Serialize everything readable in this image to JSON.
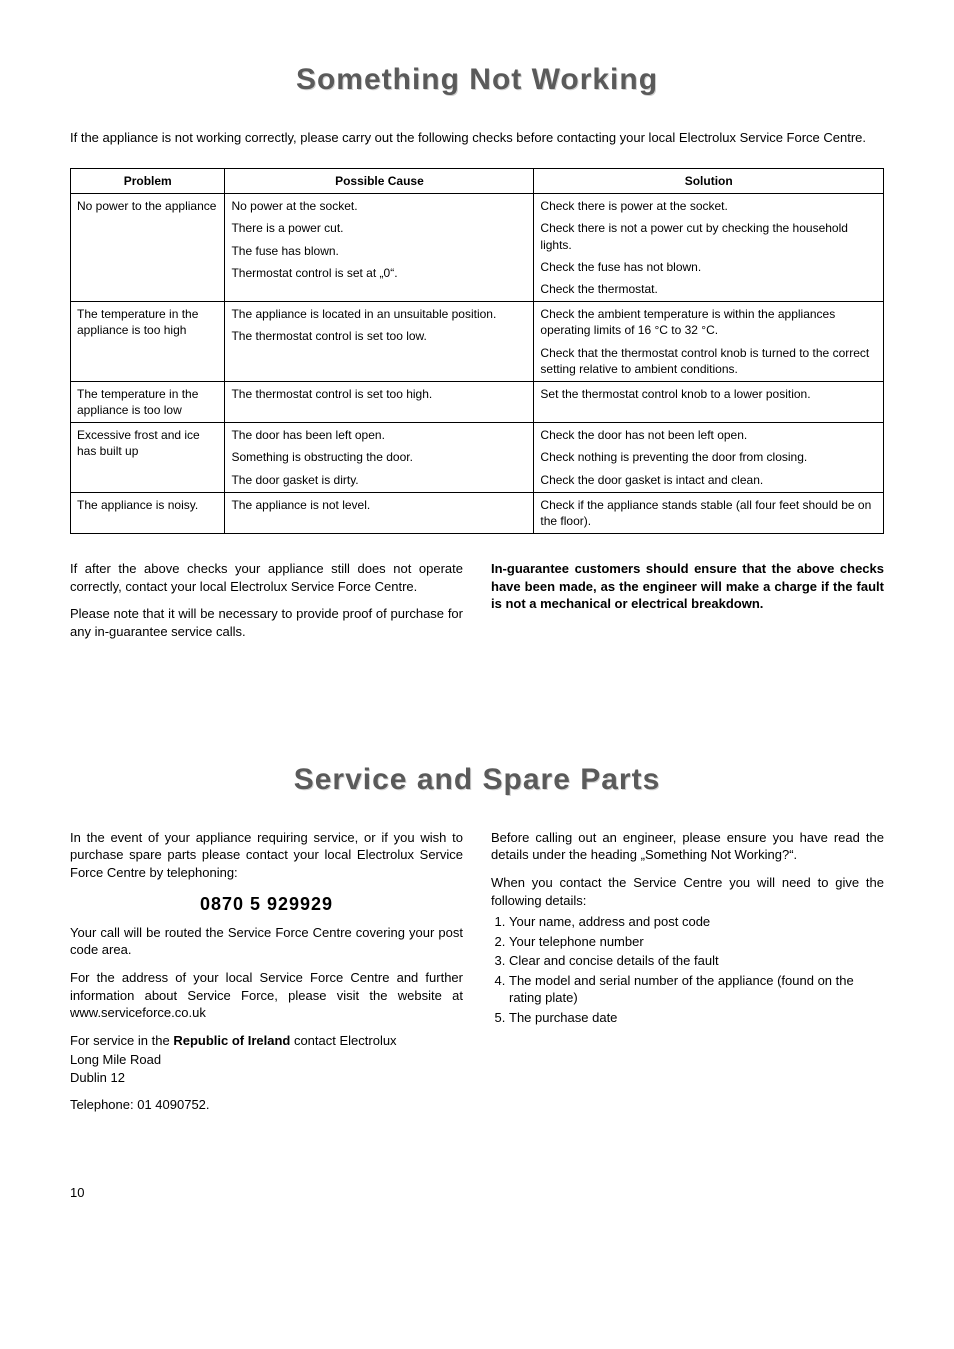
{
  "section1": {
    "title": "Something Not Working",
    "intro": "If the appliance is not working correctly, please carry out the following checks before contacting your local Electrolux Service Force Centre.",
    "headers": [
      "Problem",
      "Possible Cause",
      "Solution"
    ],
    "rows": [
      {
        "problem": "No power to the appliance",
        "lines": [
          {
            "cause": "No power at the socket.",
            "solution": "Check there is power at the socket."
          },
          {
            "cause": "There is a power cut.",
            "solution": "Check there is not a power cut by checking the household lights."
          },
          {
            "cause": "The fuse has blown.",
            "solution": "Check the fuse has not blown."
          },
          {
            "cause": "Thermostat control is set at „0“.",
            "solution": "Check the thermostat."
          }
        ]
      },
      {
        "problem": "The temperature in the appliance is too high",
        "lines": [
          {
            "cause": "The appliance is located in an unsuitable position.",
            "solution": "Check the ambient temperature is within the appliances operating limits of 16 °C to 32 °C."
          },
          {
            "cause": "The thermostat control is set too low.",
            "solution": "Check that the thermostat control knob is turned to the correct setting relative to ambient conditions."
          }
        ]
      },
      {
        "problem": "The temperature in the appliance is too low",
        "lines": [
          {
            "cause": "The thermostat control is set too high.",
            "solution": "Set the thermostat control knob to a lower position."
          }
        ]
      },
      {
        "problem": "Excessive frost and ice has built up",
        "lines": [
          {
            "cause": "The door has been left open.",
            "solution": "Check the door has not been left open."
          },
          {
            "cause": "Something is obstructing the door.",
            "solution": "Check nothing is preventing the door from closing."
          },
          {
            "cause": "The door gasket is dirty.",
            "solution": "Check the door gasket is intact and clean."
          }
        ]
      },
      {
        "problem": "The appliance is noisy.",
        "lines": [
          {
            "cause": "The appliance is not level.",
            "solution": "Check if the appliance stands stable (all four feet should be on the floor)."
          }
        ]
      }
    ],
    "after_left_p1": "If after the above checks your appliance still does not operate correctly, contact your local Electrolux Service Force Centre.",
    "after_left_p2": "Please note that it will be necessary to provide proof of purchase for any in-guarantee service calls.",
    "after_right": "In-guarantee customers should ensure that the above checks have been made, as the engineer will make a charge if the fault is not a mechanical or electrical breakdown."
  },
  "section2": {
    "title": "Service and Spare Parts",
    "left": {
      "p1": "In the event of your appliance requiring service, or if you wish to purchase spare parts please contact your local Electrolux Service Force Centre by telephoning:",
      "phone": "0870 5 929929",
      "p2": "Your call will be routed the Service Force Centre covering your post code area.",
      "p3": "For the address of your local Service Force Centre and further information about Service Force, please visit the website at www.serviceforce.co.uk",
      "p4_prefix": "For service in the ",
      "p4_bold": "Republic of Ireland",
      "p4_suffix": " contact Electrolux",
      "addr1": "Long Mile Road",
      "addr2": "Dublin 12",
      "tel": "Telephone:  01 4090752."
    },
    "right": {
      "p1": "Before calling out an engineer, please ensure you have read the details under the heading „Something Not Working?“.",
      "p2": "When you contact the Service Centre you will need to give the following details:",
      "list": [
        "Your name, address and post code",
        "Your telephone number",
        "Clear and concise details of the fault",
        "The model and serial number of the appliance (found on the rating plate)",
        "The purchase date"
      ]
    }
  },
  "page_number": "10"
}
